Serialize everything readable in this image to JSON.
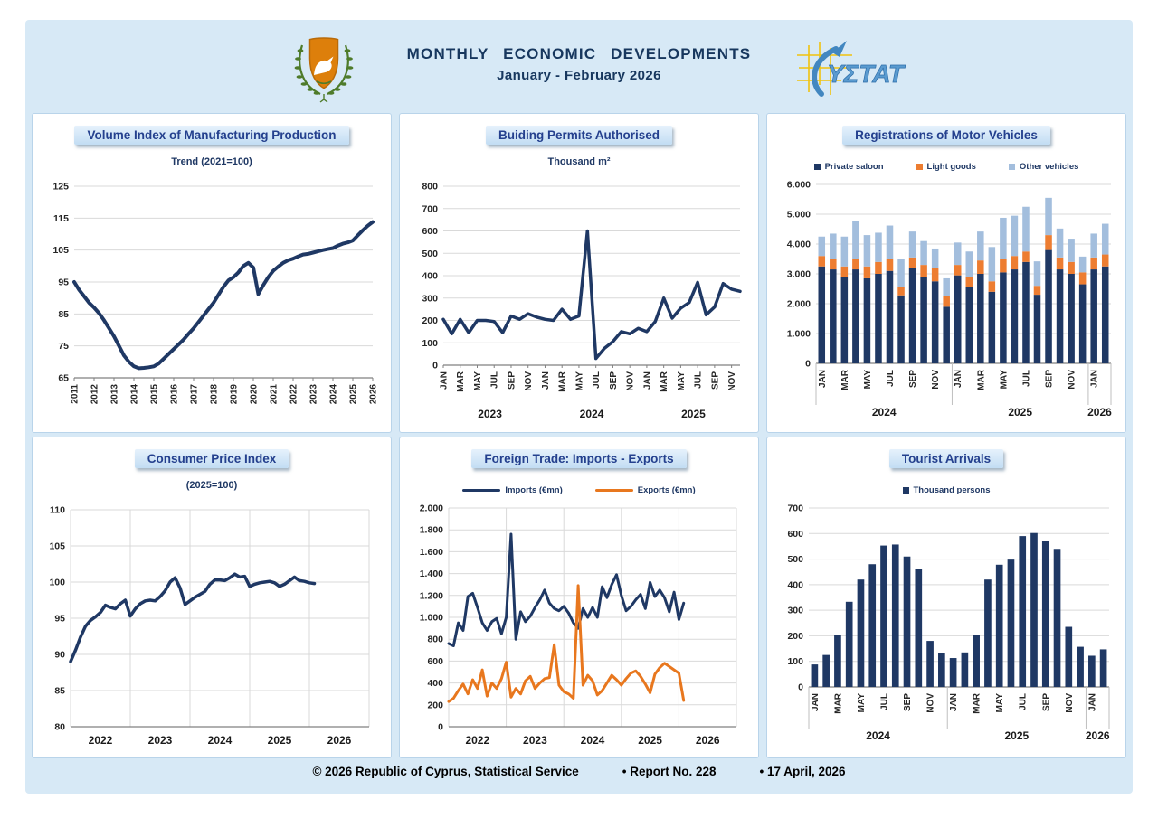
{
  "header": {
    "title_line1": "MONTHLY  ECONOMIC  DEVELOPMENTS",
    "title_line2": "January - February 2026"
  },
  "footer": {
    "copyright": "© 2026 Republic of Cyprus, Statistical Service",
    "report": "• Report No. 228",
    "date": "• 17 April, 2026"
  },
  "panels": [
    {
      "title": "Volume Index of Manufacturing Production",
      "subtitle": "Trend (2021=100)"
    },
    {
      "title": "Buiding Permits Authorised",
      "subtitle": "Thousand m²"
    },
    {
      "title": "Registrations of Motor Vehicles",
      "swatch": "square",
      "legend": [
        {
          "label": "Private saloon",
          "color": "#1F3864"
        },
        {
          "label": "Light goods",
          "color": "#ED7D31"
        },
        {
          "label": "Other vehicles",
          "color": "#A3BEDD"
        }
      ]
    },
    {
      "title": "Consumer Price Index",
      "subtitle": "(2025=100)"
    },
    {
      "title": "Foreign Trade: Imports - Exports",
      "swatch": "line",
      "legend": [
        {
          "label": "Imports (€mn)",
          "color": "#1F3864"
        },
        {
          "label": "Exports (€mn)",
          "color": "#E8771E"
        }
      ]
    },
    {
      "title": "Tourist Arrivals",
      "swatch": "square",
      "legend": [
        {
          "label": "Thousand persons",
          "color": "#1F3864"
        }
      ]
    }
  ],
  "chart_data": [
    {
      "type": "line",
      "title": "Volume Index of Manufacturing Production",
      "subtitle": "Trend (2021=100)",
      "ylim": [
        65,
        125
      ],
      "y_step": 10,
      "grid": "horizontal",
      "x_tick_labels": [
        "2011",
        "2012",
        "2013",
        "2014",
        "2015",
        "2016",
        "2017",
        "2018",
        "2019",
        "2020",
        "2021",
        "2022",
        "2023",
        "2024",
        "2025",
        "2026"
      ],
      "points_per_tick": 4,
      "frequency": "quarterly",
      "series": [
        {
          "name": "Trend (2021=100)",
          "color": "#1F3864",
          "width": 4,
          "values": [
            95.0,
            92.5,
            90.5,
            88.5,
            87.0,
            85.2,
            83.0,
            80.5,
            78.0,
            75.0,
            72.0,
            70.0,
            68.6,
            68.0,
            68.1,
            68.3,
            68.6,
            69.5,
            71.0,
            72.5,
            74.0,
            75.5,
            77.0,
            78.8,
            80.5,
            82.5,
            84.5,
            86.5,
            88.5,
            91.0,
            93.5,
            95.5,
            96.5,
            98.0,
            100.0,
            101.0,
            99.5,
            91.2,
            94.0,
            96.5,
            98.5,
            99.8,
            101.0,
            101.8,
            102.3,
            103.0,
            103.6,
            103.8,
            104.2,
            104.6,
            105.0,
            105.3,
            105.6,
            106.4,
            107.0,
            107.4,
            108.0,
            109.6,
            111.2,
            112.6,
            113.8
          ]
        }
      ]
    },
    {
      "type": "line",
      "title": "Buiding Permits Authorised",
      "subtitle": "Thousand m²",
      "ylim": [
        0,
        800
      ],
      "y_step": 100,
      "grid": "horizontal",
      "month_labels": [
        "JAN",
        "MAR",
        "MAY",
        "JUL",
        "SEP",
        "NOV"
      ],
      "group_size": 12,
      "year_groups": [
        "2023",
        "2024",
        "2025"
      ],
      "frequency": "monthly",
      "start": "JAN 2023",
      "end": "DEC 2025",
      "series": [
        {
          "name": "Thousand m²",
          "color": "#1F3864",
          "width": 3.5,
          "values": [
            205,
            140,
            205,
            145,
            200,
            200,
            195,
            145,
            220,
            205,
            230,
            215,
            205,
            200,
            250,
            205,
            220,
            600,
            30,
            75,
            105,
            150,
            140,
            165,
            150,
            195,
            300,
            210,
            255,
            280,
            370,
            225,
            260,
            365,
            340,
            330
          ]
        }
      ]
    },
    {
      "type": "stacked_bar",
      "title": "Registrations of Motor Vehicles",
      "ylim": [
        0,
        6000
      ],
      "y_step": 1000,
      "y_fmt": "dots",
      "grid": "horizontal",
      "month_labels": [
        "JAN",
        "MAR",
        "MAY",
        "JUL",
        "SEP",
        "NOV"
      ],
      "group_size": 12,
      "year_groups": [
        "2024",
        "2025",
        "2026"
      ],
      "frequency": "monthly",
      "start": "JAN 2024",
      "end": "FEB 2026",
      "series": [
        {
          "name": "Private saloon",
          "color": "#1F3864",
          "values": [
            3250,
            3150,
            2900,
            3150,
            2850,
            3000,
            3100,
            2280,
            3200,
            2900,
            2750,
            1900,
            2950,
            2550,
            3000,
            2400,
            3050,
            3150,
            3400,
            2300,
            3800,
            3150,
            3000,
            2650,
            3150,
            3250
          ]
        },
        {
          "name": "Light goods",
          "color": "#ED7D31",
          "values": [
            350,
            350,
            350,
            350,
            400,
            400,
            400,
            270,
            350,
            400,
            450,
            350,
            350,
            350,
            450,
            350,
            450,
            450,
            350,
            300,
            500,
            400,
            400,
            400,
            400,
            400
          ]
        },
        {
          "name": "Other vehicles",
          "color": "#A3BEDD",
          "values": [
            650,
            850,
            1000,
            1280,
            1050,
            980,
            1120,
            950,
            870,
            800,
            650,
            600,
            750,
            850,
            970,
            1150,
            1380,
            1350,
            1500,
            820,
            1250,
            970,
            780,
            530,
            800,
            1030
          ]
        }
      ]
    },
    {
      "type": "line",
      "title": "Consumer Price Index",
      "subtitle": "(2025=100)",
      "ylim": [
        80,
        110
      ],
      "y_step": 5,
      "grid": "both",
      "bands": [
        "2022",
        "2023",
        "2024",
        "2025",
        "2026"
      ],
      "months_per_band": 12,
      "frequency": "monthly",
      "start": "JAN 2022",
      "end": "FEB 2026",
      "series": [
        {
          "name": "CPI (2025=100)",
          "color": "#1F3864",
          "width": 3.5,
          "values": [
            89.0,
            90.6,
            92.4,
            93.9,
            94.7,
            95.2,
            95.8,
            96.8,
            96.5,
            96.3,
            97.0,
            97.5,
            95.3,
            96.3,
            97.0,
            97.4,
            97.5,
            97.4,
            98.0,
            98.8,
            100.0,
            100.6,
            99.2,
            96.9,
            97.4,
            97.9,
            98.3,
            98.7,
            99.7,
            100.3,
            100.3,
            100.2,
            100.6,
            101.1,
            100.7,
            100.8,
            99.4,
            99.7,
            99.9,
            100.0,
            100.1,
            99.9,
            99.4,
            99.7,
            100.2,
            100.7,
            100.2,
            100.1,
            99.9,
            99.8
          ]
        }
      ]
    },
    {
      "type": "line",
      "title": "Foreign Trade: Imports - Exports",
      "ylim": [
        0,
        2000
      ],
      "y_step": 200,
      "y_fmt": "dots",
      "grid": "both",
      "bands": [
        "2022",
        "2023",
        "2024",
        "2025",
        "2026"
      ],
      "months_per_band": 12,
      "frequency": "monthly",
      "start": "JAN 2022",
      "end": "FEB 2026",
      "series": [
        {
          "name": "Imports (€mn)",
          "color": "#1F3864",
          "width": 3,
          "values": [
            760,
            740,
            950,
            880,
            1190,
            1220,
            1090,
            950,
            880,
            960,
            990,
            850,
            1000,
            1760,
            800,
            1050,
            960,
            1010,
            1090,
            1160,
            1250,
            1130,
            1080,
            1060,
            1100,
            1040,
            950,
            900,
            1080,
            1000,
            1090,
            1000,
            1280,
            1180,
            1300,
            1390,
            1200,
            1060,
            1100,
            1160,
            1210,
            1080,
            1320,
            1190,
            1250,
            1180,
            1050,
            1230,
            980,
            1130
          ]
        },
        {
          "name": "Exports (€mn)",
          "color": "#E8771E",
          "width": 3,
          "values": [
            230,
            260,
            330,
            390,
            300,
            430,
            350,
            520,
            280,
            400,
            350,
            440,
            590,
            270,
            350,
            300,
            420,
            460,
            350,
            400,
            440,
            450,
            750,
            380,
            320,
            300,
            260,
            1290,
            380,
            470,
            420,
            290,
            330,
            400,
            470,
            430,
            380,
            440,
            490,
            510,
            460,
            390,
            310,
            480,
            540,
            580,
            550,
            520,
            490,
            240
          ]
        }
      ]
    },
    {
      "type": "bar",
      "title": "Tourist Arrivals",
      "ylim": [
        0,
        700
      ],
      "y_step": 100,
      "grid": "horizontal",
      "month_labels": [
        "JAN",
        "MAR",
        "MAY",
        "JUL",
        "SEP",
        "NOV"
      ],
      "group_size": 12,
      "year_groups": [
        "2024",
        "2025",
        "2026"
      ],
      "frequency": "monthly",
      "start": "JAN 2024",
      "end": "FEB 2026",
      "series": [
        {
          "name": "Thousand persons",
          "color": "#1F3864",
          "values": [
            88,
            125,
            205,
            333,
            420,
            480,
            553,
            557,
            510,
            460,
            180,
            133,
            113,
            135,
            203,
            420,
            478,
            498,
            590,
            602,
            572,
            540,
            235,
            157,
            122,
            147
          ]
        }
      ]
    }
  ]
}
